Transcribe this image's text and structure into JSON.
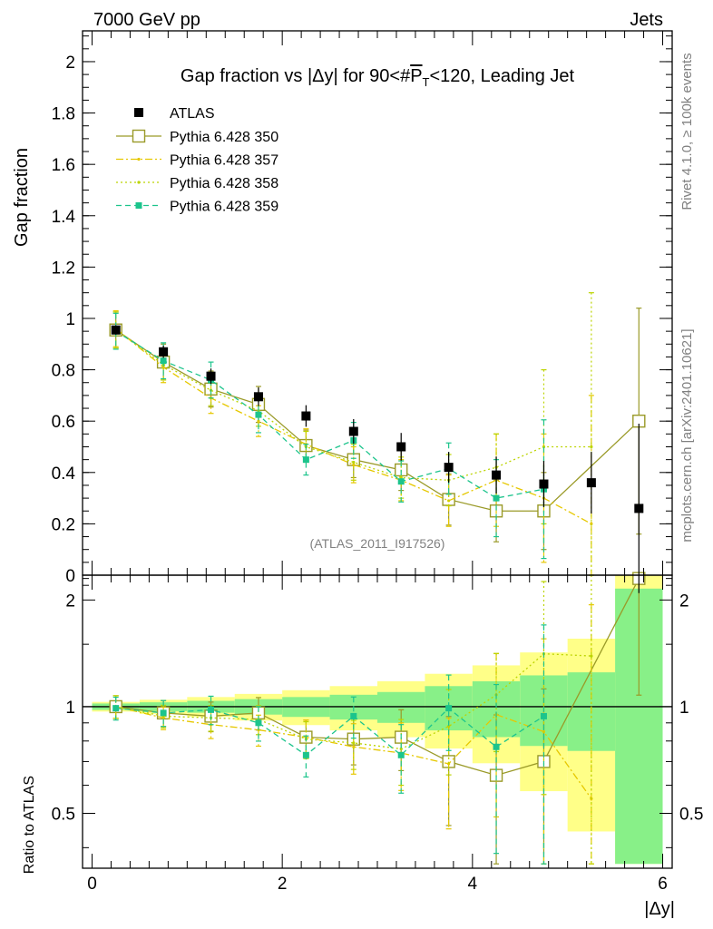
{
  "header": {
    "left": "7000 GeV pp",
    "right": "Jets"
  },
  "side": {
    "rivet": "Rivet 4.1.0, ≥ 100k events",
    "mcplots": "mcplots.cern.ch [arXiv:2401.10621]"
  },
  "chart_data": {
    "type": "scatter",
    "title": "Gap fraction vs |Δy| for 90<#P̅T<120, Leading Jet",
    "title_parts": {
      "prefix": "Gap fraction vs |Δy| for 90<#",
      "pt": "P",
      "pt_sub": "T",
      "suffix": "<120, Leading Jet"
    },
    "ylabel": "Gap fraction",
    "ratio_ylabel": "Ratio to ATLAS",
    "xlabel": "|Δy|",
    "watermark": "(ATLAS_2011_I917526)",
    "xlim": [
      -0.1,
      6.1
    ],
    "ylim": [
      0,
      2.12
    ],
    "ratio_ylim": [
      0.35,
      2.35
    ],
    "xticks": [
      "0",
      "2",
      "4",
      "6"
    ],
    "yticks": [
      "0",
      "0.2",
      "0.4",
      "0.6",
      "0.8",
      "1",
      "1.2",
      "1.4",
      "1.6",
      "1.8",
      "2"
    ],
    "ratio_yticks": [
      "0.5",
      "1",
      "2"
    ],
    "x": [
      0.25,
      0.75,
      1.25,
      1.75,
      2.25,
      2.75,
      3.25,
      3.75,
      4.25,
      4.75,
      5.25,
      5.75
    ],
    "atlas": {
      "name": "ATLAS",
      "values": [
        0.955,
        0.87,
        0.775,
        0.695,
        0.62,
        0.56,
        0.5,
        0.42,
        0.39,
        0.355,
        0.36,
        0.26
      ],
      "band_inner": [
        0.02,
        0.025,
        0.03,
        0.035,
        0.04,
        0.045,
        0.05,
        0.06,
        0.07,
        0.08,
        0.09,
        0.3
      ],
      "band_outer": [
        0.03,
        0.04,
        0.05,
        0.06,
        0.07,
        0.08,
        0.09,
        0.1,
        0.12,
        0.15,
        0.2,
        0.55
      ]
    },
    "series": [
      {
        "name": "Pythia 6.428 350",
        "color": "#9a9a28",
        "style": "solid",
        "marker": "open-square",
        "x": [
          0.25,
          0.75,
          1.25,
          1.75,
          2.25,
          2.75,
          3.25,
          3.75,
          4.25,
          4.75,
          5.75
        ],
        "values": [
          0.955,
          0.83,
          0.725,
          0.665,
          0.505,
          0.45,
          0.41,
          0.295,
          0.25,
          0.25,
          0.6
        ],
        "errors": [
          0.07,
          0.07,
          0.07,
          0.07,
          0.06,
          0.07,
          0.08,
          0.1,
          0.12,
          0.15,
          0.44
        ],
        "ratio": [
          1.0,
          0.96,
          0.94,
          0.96,
          0.82,
          0.81,
          0.82,
          0.7,
          0.64,
          0.7,
          2.3
        ]
      },
      {
        "name": "Pythia 6.428 357",
        "color": "#e6c800",
        "style": "dashdot",
        "marker": "small-dot",
        "x": [
          0.25,
          0.75,
          1.25,
          1.75,
          2.25,
          2.75,
          3.25,
          3.75,
          4.25,
          4.75,
          5.25
        ],
        "values": [
          0.96,
          0.81,
          0.69,
          0.6,
          0.51,
          0.43,
          0.37,
          0.29,
          0.37,
          0.3,
          0.2
        ],
        "errors": [
          0.07,
          0.06,
          0.06,
          0.06,
          0.06,
          0.07,
          0.08,
          0.1,
          0.18,
          0.25,
          0.5
        ],
        "ratio": [
          1.0,
          0.93,
          0.89,
          0.86,
          0.82,
          0.77,
          0.74,
          0.69,
          0.95,
          0.85,
          0.55
        ]
      },
      {
        "name": "Pythia 6.428 358",
        "color": "#bcd400",
        "style": "dotted",
        "marker": "small-dot",
        "x": [
          0.25,
          0.75,
          1.25,
          1.75,
          2.25,
          2.75,
          3.25,
          3.75,
          4.25,
          4.75,
          5.25
        ],
        "values": [
          0.955,
          0.82,
          0.72,
          0.64,
          0.5,
          0.44,
          0.38,
          0.37,
          0.42,
          0.5,
          0.5
        ],
        "errors": [
          0.07,
          0.06,
          0.06,
          0.06,
          0.06,
          0.07,
          0.08,
          0.1,
          0.13,
          0.3,
          0.6
        ],
        "ratio": [
          1.0,
          0.94,
          0.93,
          0.92,
          0.81,
          0.79,
          0.76,
          0.88,
          1.08,
          1.41,
          1.39
        ]
      },
      {
        "name": "Pythia 6.428 359",
        "color": "#1cc48c",
        "style": "dashed",
        "marker": "filled-square",
        "x": [
          0.25,
          0.75,
          1.25,
          1.75,
          2.25,
          2.75,
          3.25,
          3.75,
          4.25,
          4.75
        ],
        "values": [
          0.95,
          0.835,
          0.76,
          0.625,
          0.45,
          0.525,
          0.365,
          0.415,
          0.3,
          0.335
        ],
        "errors": [
          0.07,
          0.07,
          0.07,
          0.07,
          0.06,
          0.07,
          0.08,
          0.1,
          0.15,
          0.27
        ],
        "ratio": [
          0.99,
          0.96,
          0.98,
          0.9,
          0.73,
          0.94,
          0.73,
          0.99,
          0.77,
          0.94
        ]
      }
    ]
  }
}
